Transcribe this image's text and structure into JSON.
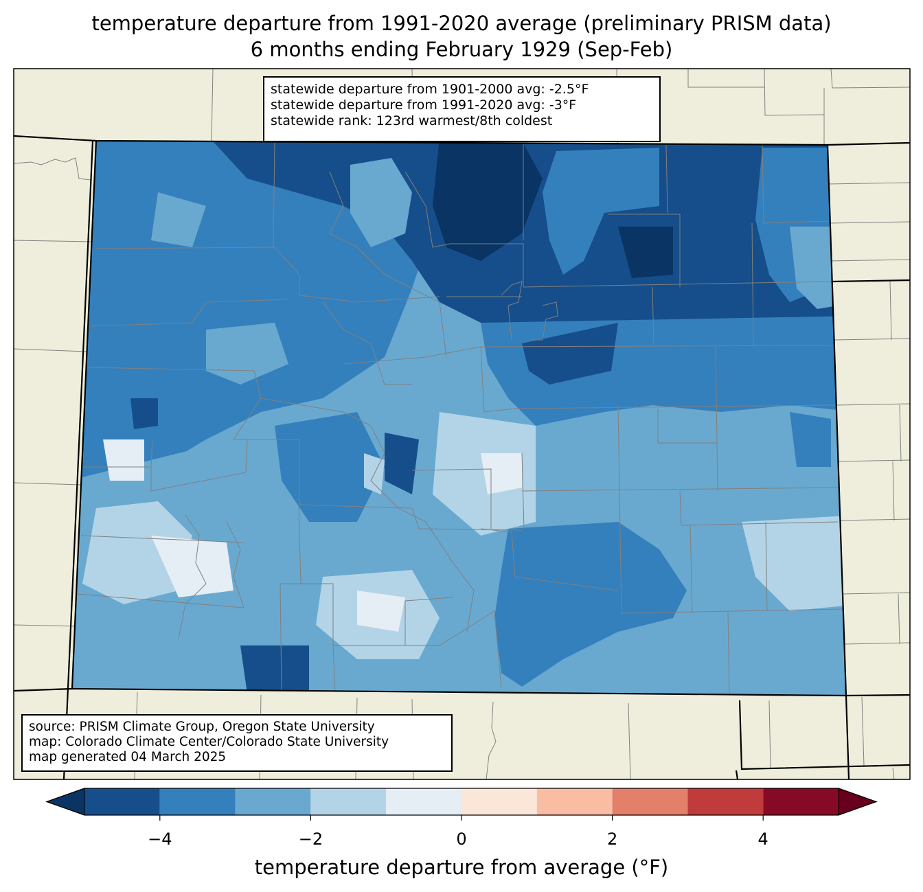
{
  "title": {
    "line1": "temperature departure from 1991-2020 average (preliminary PRISM data)",
    "line2": "6 months ending February 1929 (Sep-Feb)"
  },
  "stats_box": {
    "line1": "statewide departure from 1901-2000 avg: -2.5°F",
    "line2": "statewide departure from 1991-2020 avg: -3°F",
    "line3": "statewide rank: 123rd warmest/8th coldest"
  },
  "credits_box": {
    "line1": "source: PRISM Climate Group, Oregon State University",
    "line2": "map: Colorado Climate Center/Colorado State University",
    "line3": "map generated 04 March 2025"
  },
  "colorbar": {
    "label": "temperature departure from average (°F)",
    "ticks": [
      {
        "value": -4,
        "label": "−4"
      },
      {
        "value": -2,
        "label": "−2"
      },
      {
        "value": 0,
        "label": "0"
      },
      {
        "value": 2,
        "label": "2"
      },
      {
        "value": 4,
        "label": "4"
      }
    ],
    "range": [
      -5,
      5
    ],
    "bins": [
      {
        "from": -5,
        "to": -4,
        "color": "#154e8a"
      },
      {
        "from": -4,
        "to": -3,
        "color": "#3480bd"
      },
      {
        "from": -3,
        "to": -2,
        "color": "#69a9d0"
      },
      {
        "from": -2,
        "to": -1,
        "color": "#b3d4e7"
      },
      {
        "from": -1,
        "to": 0,
        "color": "#e5eef4"
      },
      {
        "from": 0,
        "to": 1,
        "color": "#fbe6da"
      },
      {
        "from": 1,
        "to": 2,
        "color": "#f8bda2"
      },
      {
        "from": 2,
        "to": 3,
        "color": "#e28069"
      },
      {
        "from": 3,
        "to": 4,
        "color": "#c03b3b"
      },
      {
        "from": 4,
        "to": 5,
        "color": "#860a25"
      }
    ],
    "under_color": "#0a3464",
    "over_color": "#68001d"
  },
  "map_colors": {
    "background": "#efeedc",
    "county_lines": "#808080",
    "state_border": "#000000"
  }
}
